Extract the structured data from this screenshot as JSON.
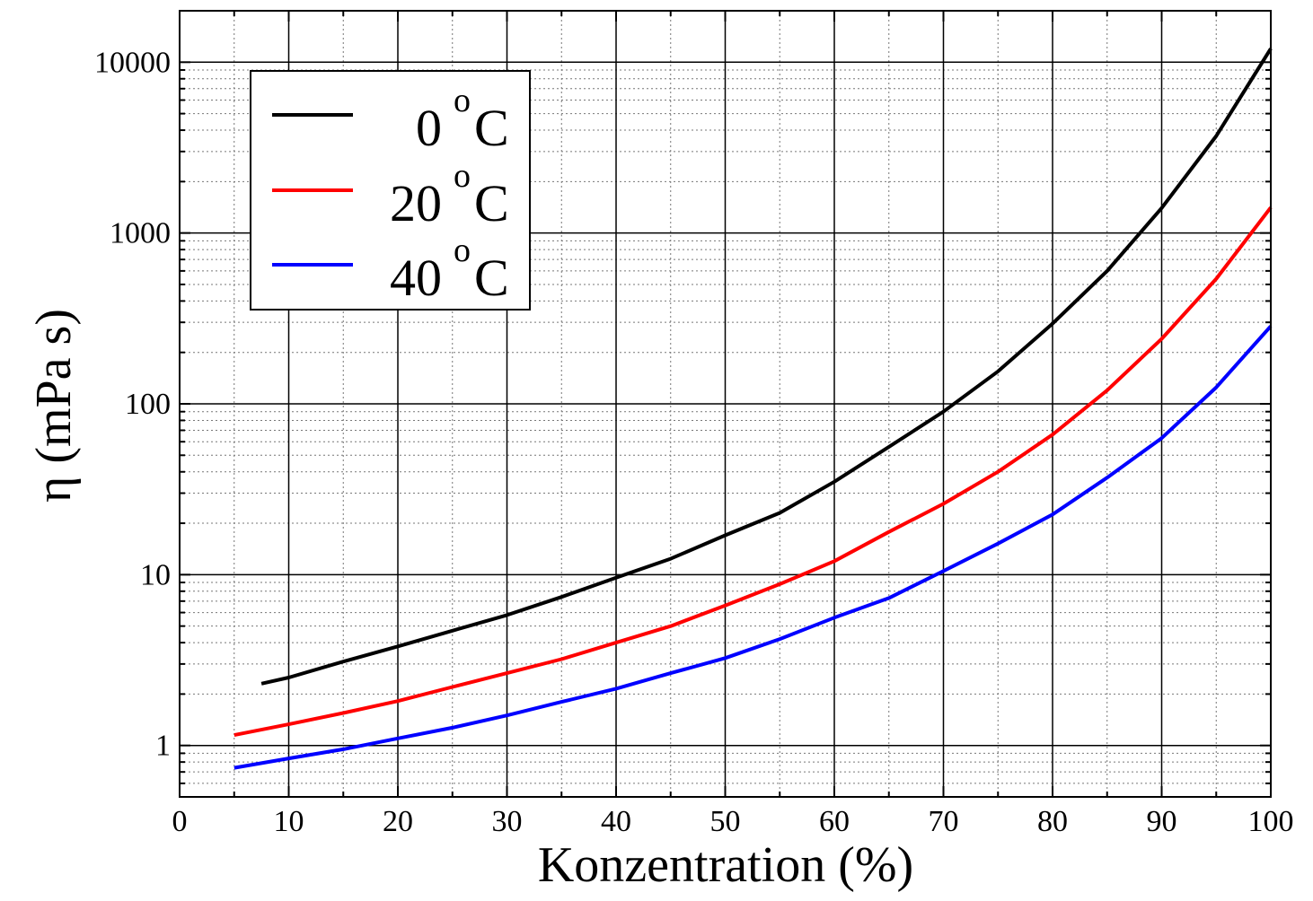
{
  "chart_data": {
    "type": "line",
    "title": "",
    "xlabel": "Konzentration (%)",
    "ylabel": "η (mPa s)",
    "xlim": [
      0,
      100
    ],
    "ylim": [
      0.5,
      20000
    ],
    "yscale": "log",
    "grid": true,
    "legend_position": "top-left",
    "x_ticks": [
      "0",
      "10",
      "20",
      "30",
      "40",
      "50",
      "60",
      "70",
      "80",
      "90",
      "100"
    ],
    "y_ticks": [
      "1",
      "10",
      "100",
      "1000",
      "10000"
    ],
    "series": [
      {
        "name": "0",
        "unit_sup": "o",
        "unit": "C",
        "color": "#000000",
        "points": [
          [
            7.5,
            2.3
          ],
          [
            10,
            2.5
          ],
          [
            15,
            3.1
          ],
          [
            20,
            3.8
          ],
          [
            25,
            4.7
          ],
          [
            30,
            5.8
          ],
          [
            35,
            7.4
          ],
          [
            40,
            9.6
          ],
          [
            45,
            12.4
          ],
          [
            50,
            17
          ],
          [
            55,
            23
          ],
          [
            60,
            35
          ],
          [
            65,
            56
          ],
          [
            70,
            90
          ],
          [
            75,
            155
          ],
          [
            80,
            295
          ],
          [
            85,
            600
          ],
          [
            90,
            1400
          ],
          [
            95,
            3700
          ],
          [
            100,
            12000
          ]
        ]
      },
      {
        "name": "20",
        "unit_sup": "o",
        "unit": "C",
        "color": "#ff0000",
        "points": [
          [
            5,
            1.15
          ],
          [
            10,
            1.33
          ],
          [
            15,
            1.55
          ],
          [
            20,
            1.82
          ],
          [
            25,
            2.2
          ],
          [
            30,
            2.65
          ],
          [
            35,
            3.2
          ],
          [
            40,
            4.0
          ],
          [
            45,
            5.0
          ],
          [
            50,
            6.6
          ],
          [
            55,
            8.8
          ],
          [
            60,
            12
          ],
          [
            65,
            17.8
          ],
          [
            70,
            26
          ],
          [
            75,
            40
          ],
          [
            80,
            66
          ],
          [
            85,
            120
          ],
          [
            90,
            240
          ],
          [
            95,
            540
          ],
          [
            100,
            1410
          ]
        ]
      },
      {
        "name": "40",
        "unit_sup": "o",
        "unit": "C",
        "color": "#0000ff",
        "points": [
          [
            5,
            0.74
          ],
          [
            10,
            0.84
          ],
          [
            15,
            0.95
          ],
          [
            20,
            1.1
          ],
          [
            25,
            1.27
          ],
          [
            30,
            1.5
          ],
          [
            35,
            1.8
          ],
          [
            40,
            2.15
          ],
          [
            45,
            2.65
          ],
          [
            50,
            3.25
          ],
          [
            55,
            4.2
          ],
          [
            60,
            5.6
          ],
          [
            65,
            7.3
          ],
          [
            70,
            10.5
          ],
          [
            75,
            15.2
          ],
          [
            80,
            22.5
          ],
          [
            85,
            37
          ],
          [
            90,
            63
          ],
          [
            95,
            125
          ],
          [
            100,
            285
          ]
        ]
      }
    ]
  }
}
